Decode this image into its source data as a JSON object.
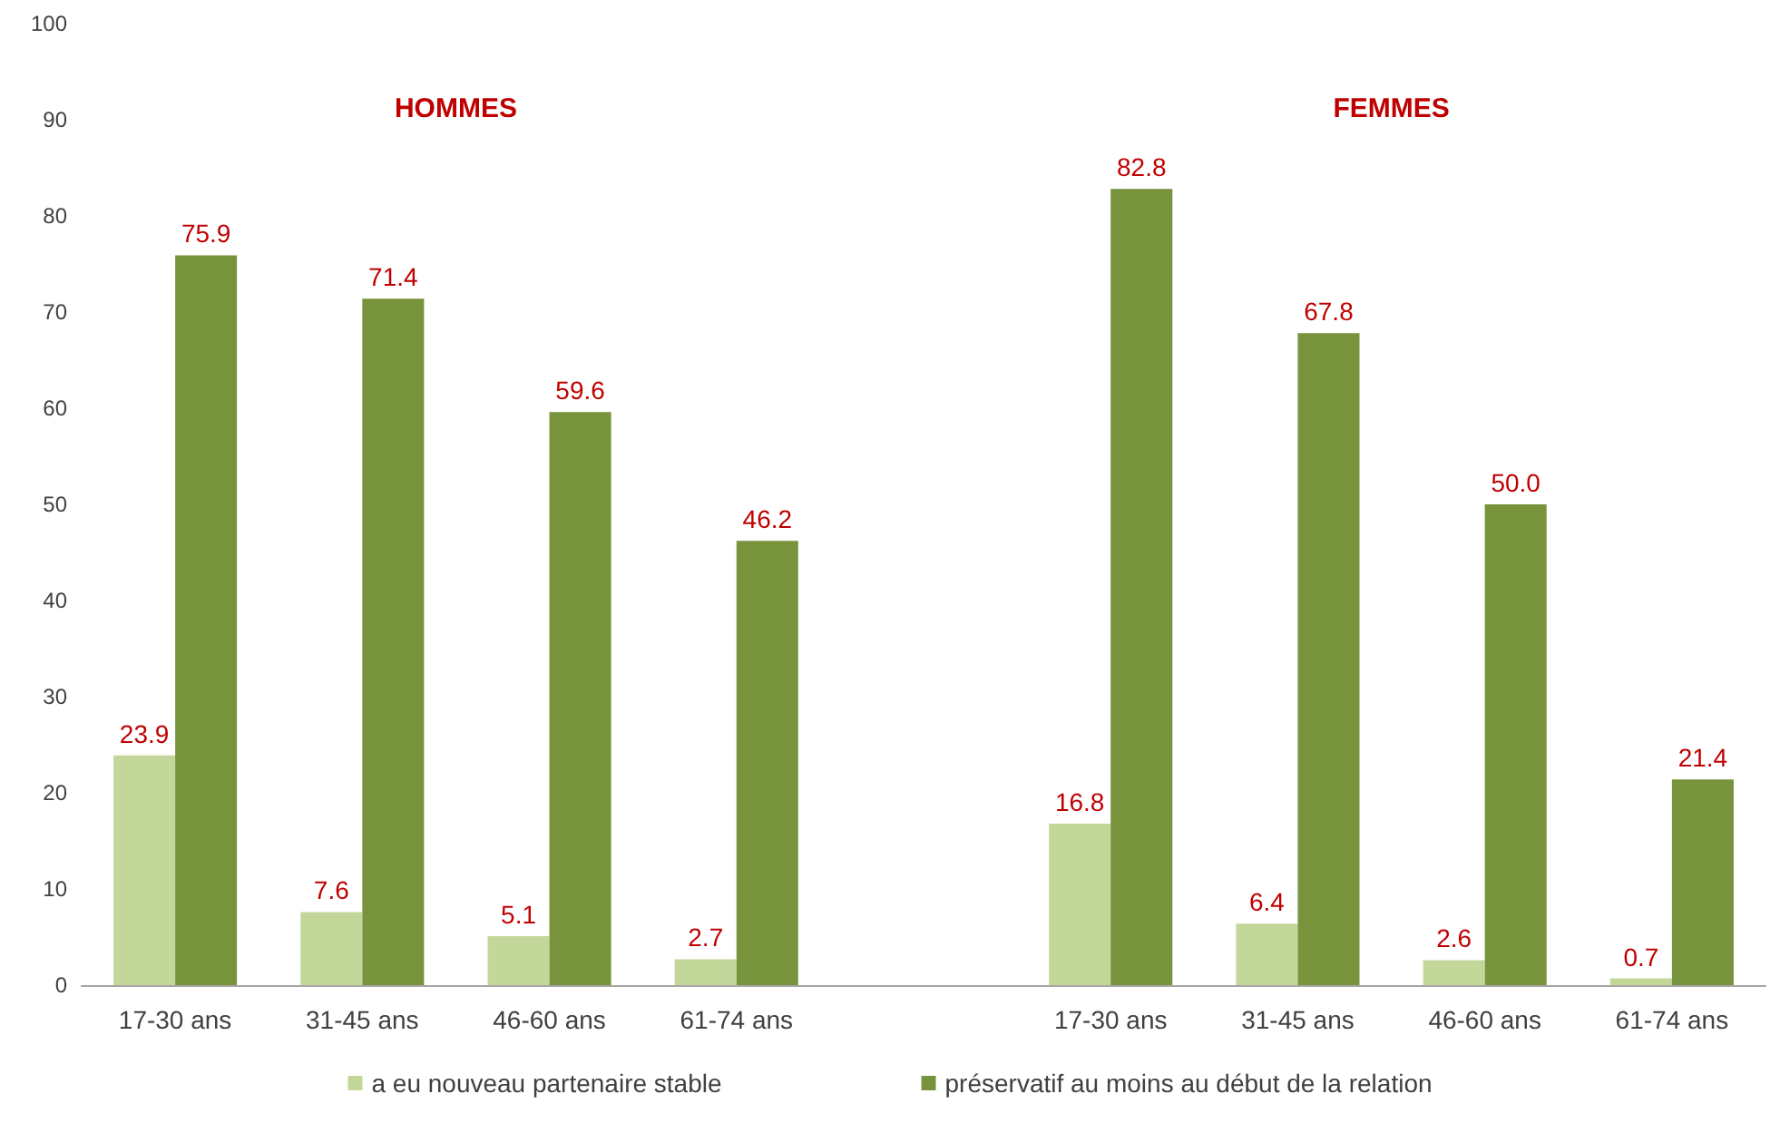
{
  "chart_data": {
    "type": "bar",
    "categories": [
      "17-30 ans",
      "31-45 ans",
      "46-60 ans",
      "61-74 ans",
      null,
      "17-30 ans",
      "31-45 ans",
      "46-60 ans",
      "61-74 ans"
    ],
    "series": [
      {
        "name": "a eu nouveau partenaire stable",
        "color": "#c4d79b",
        "values": [
          23.9,
          7.6,
          5.1,
          2.7,
          null,
          16.8,
          6.4,
          2.6,
          0.7
        ],
        "value_labels": [
          "23.9",
          "7.6",
          "5.1",
          "2.7",
          null,
          "16.8",
          "6.4",
          "2.6",
          "0.7"
        ]
      },
      {
        "name": "préservatif au moins au début de la relation",
        "color": "#77933c",
        "values": [
          75.9,
          71.4,
          59.6,
          46.2,
          null,
          82.8,
          67.8,
          50.0,
          21.4
        ],
        "value_labels": [
          "75.9",
          "71.4",
          "59.6",
          "46.2",
          null,
          "82.8",
          "67.8",
          "50.0",
          "21.4"
        ]
      }
    ],
    "annotations": [
      "HOMMES",
      "FEMMES"
    ],
    "ylim": [
      0,
      100
    ],
    "yticks": [
      0,
      10,
      20,
      30,
      40,
      50,
      60,
      70,
      80,
      90,
      100
    ],
    "grid": false,
    "legend": "bottom"
  }
}
